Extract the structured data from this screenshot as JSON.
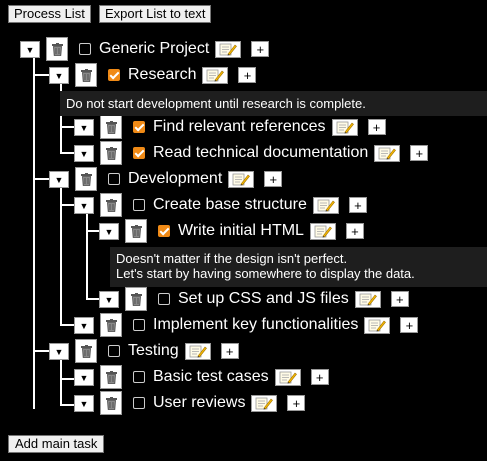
{
  "toolbar": {
    "process_label": "Process List",
    "export_label": "Export List to text"
  },
  "icons": {
    "toggle": "▼",
    "trash": "trash-icon",
    "edit": "memo-icon",
    "add": "+"
  },
  "colors": {
    "background": "#000000",
    "checkbox_checked": "#f08a16",
    "note_background": "#1e1e1e"
  },
  "tasks": [
    {
      "label": "Generic Project",
      "checked": false,
      "depth": 0
    },
    {
      "label": "Research",
      "checked": true,
      "depth": 1
    },
    {
      "label": "Find relevant references",
      "checked": true,
      "depth": 2
    },
    {
      "label": "Read technical documentation",
      "checked": true,
      "depth": 2
    },
    {
      "label": "Development",
      "checked": false,
      "depth": 1
    },
    {
      "label": "Create base structure",
      "checked": false,
      "depth": 2
    },
    {
      "label": "Write initial HTML",
      "checked": true,
      "depth": 3
    },
    {
      "label": "Set up CSS and JS files",
      "checked": false,
      "depth": 3
    },
    {
      "label": "Implement key functionalities",
      "checked": false,
      "depth": 2
    },
    {
      "label": "Testing",
      "checked": false,
      "depth": 1
    },
    {
      "label": "Basic test cases",
      "checked": false,
      "depth": 2
    },
    {
      "label": "User reviews",
      "checked": false,
      "depth": 2
    }
  ],
  "notes": {
    "research": [
      "Do not start development until research is complete."
    ],
    "write_html": [
      "Doesn't matter if the design isn't perfect.",
      "Let's start by having somewhere to display the data."
    ]
  },
  "footer": {
    "add_main_label": "Add main task"
  }
}
